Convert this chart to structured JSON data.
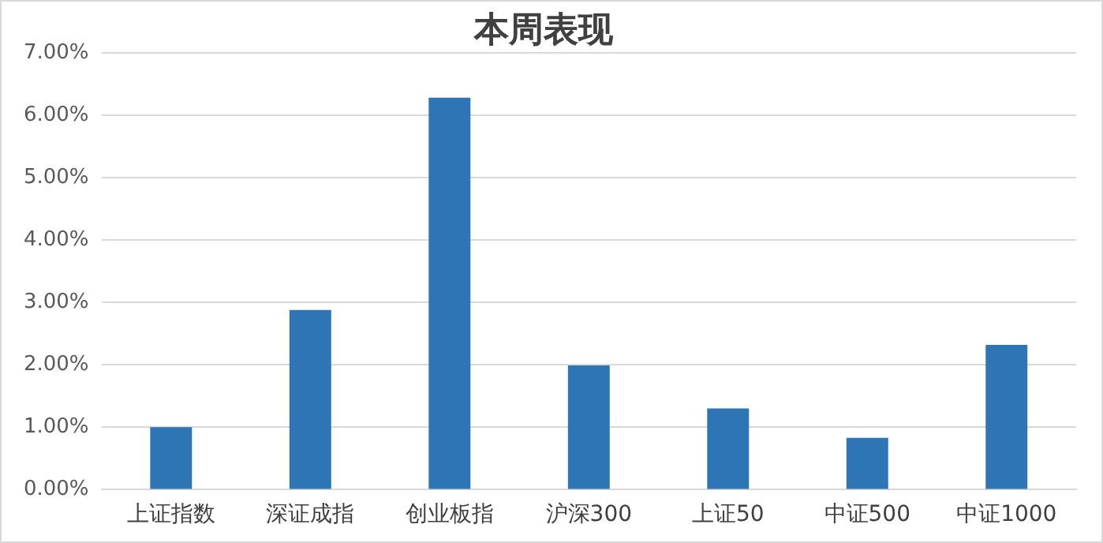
{
  "chart_data": {
    "type": "bar",
    "title": "本周表现",
    "categories": [
      "上证指数",
      "深证成指",
      "创业板指",
      "沪深300",
      "上证50",
      "中证500",
      "中证1000"
    ],
    "values": [
      1.0,
      2.88,
      6.28,
      1.99,
      1.3,
      0.83,
      2.32
    ],
    "color": "#2e75b6",
    "ylim": [
      0,
      7
    ],
    "yticks": [
      {
        "value": 0,
        "label": "0.00%"
      },
      {
        "value": 1,
        "label": "1.00%"
      },
      {
        "value": 2,
        "label": "2.00%"
      },
      {
        "value": 3,
        "label": "3.00%"
      },
      {
        "value": 4,
        "label": "4.00%"
      },
      {
        "value": 5,
        "label": "5.00%"
      },
      {
        "value": 6,
        "label": "6.00%"
      },
      {
        "value": 7,
        "label": "7.00%"
      }
    ],
    "grid": "y",
    "legend": false
  }
}
